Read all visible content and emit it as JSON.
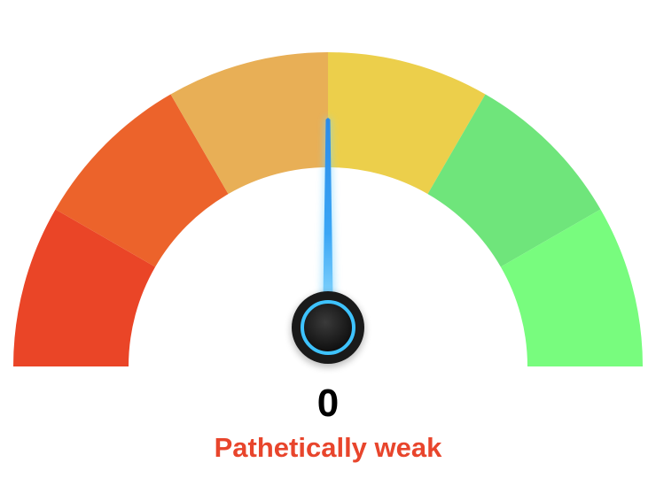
{
  "gauge": {
    "min": 0,
    "max": 100,
    "value": 0,
    "value_text": "0",
    "label": "Pathetically weak",
    "label_color": "#e8452c",
    "segments": [
      {
        "name": "segment-1",
        "color": "#ea4527"
      },
      {
        "name": "segment-2",
        "color": "#ec632b"
      },
      {
        "name": "segment-3",
        "color": "#e8af56"
      },
      {
        "name": "segment-4",
        "color": "#eccf4b"
      },
      {
        "name": "segment-5",
        "color": "#6fe57b"
      },
      {
        "name": "segment-6",
        "color": "#78fc7e"
      }
    ],
    "needle": {
      "color": "#3aa6f5",
      "glow_color": "#7fd6ff",
      "hub_color": "#1a1a1a",
      "hub_ring_color": "#3ec3ff"
    }
  }
}
